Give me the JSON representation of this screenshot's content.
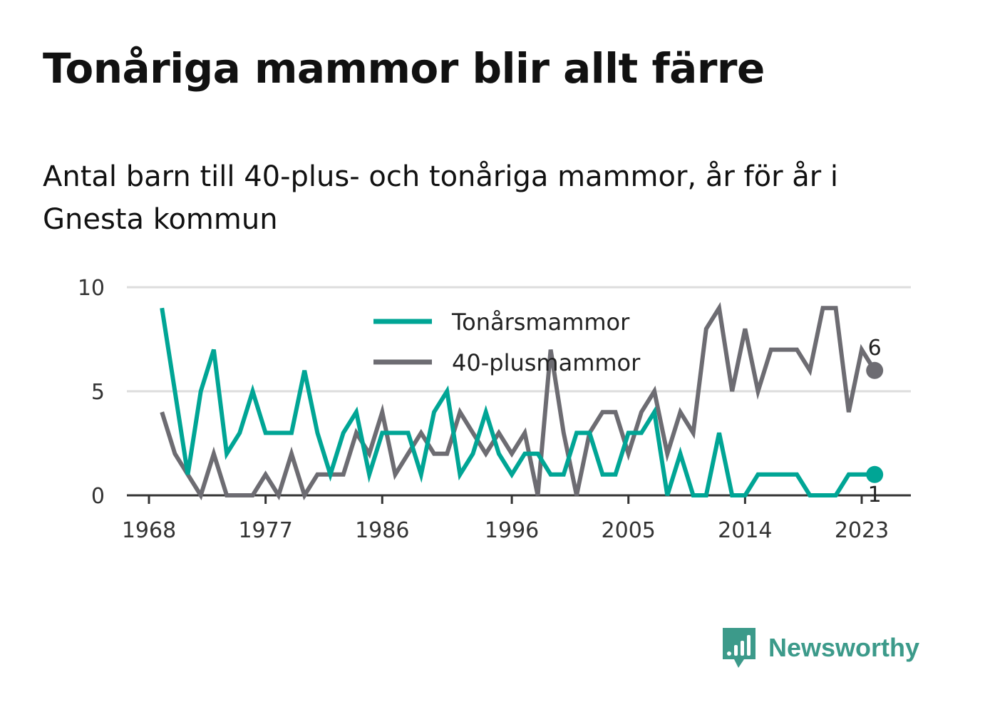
{
  "title": "Tonåriga mammor blir allt färre",
  "subtitle": "Antal barn till 40-plus- och tonåriga mammor, år för år i Gnesta kommun",
  "brand": {
    "name": "Newsworthy",
    "icon": "newsworthy-logo-icon",
    "color": "#3c9a8a"
  },
  "chart_data": {
    "type": "line",
    "x": [
      1969,
      1970,
      1971,
      1972,
      1973,
      1974,
      1975,
      1976,
      1977,
      1978,
      1979,
      1980,
      1981,
      1982,
      1983,
      1984,
      1985,
      1986,
      1987,
      1988,
      1989,
      1990,
      1991,
      1992,
      1993,
      1994,
      1995,
      1996,
      1997,
      1998,
      1999,
      2000,
      2001,
      2002,
      2003,
      2004,
      2005,
      2006,
      2007,
      2008,
      2009,
      2010,
      2011,
      2012,
      2013,
      2014,
      2015,
      2016,
      2017,
      2018,
      2019,
      2020,
      2021,
      2022,
      2023,
      2024
    ],
    "series": [
      {
        "name": "Tonårsmammor",
        "color": "#00a595",
        "values": [
          9,
          5,
          1,
          5,
          7,
          2,
          3,
          5,
          3,
          3,
          3,
          6,
          3,
          1,
          3,
          4,
          1,
          3,
          3,
          3,
          1,
          4,
          5,
          1,
          2,
          4,
          2,
          1,
          2,
          2,
          1,
          1,
          3,
          3,
          1,
          1,
          3,
          3,
          4,
          0,
          2,
          0,
          0,
          3,
          0,
          0,
          1,
          1,
          1,
          1,
          0,
          0,
          0,
          1,
          1,
          1
        ],
        "end_label": "1"
      },
      {
        "name": "40-plusmammor",
        "color": "#6d6c72",
        "values": [
          4,
          2,
          1,
          0,
          2,
          0,
          0,
          0,
          1,
          0,
          2,
          0,
          1,
          1,
          1,
          3,
          2,
          4,
          1,
          2,
          3,
          2,
          2,
          4,
          3,
          2,
          3,
          2,
          3,
          0,
          7,
          3,
          0,
          3,
          4,
          4,
          2,
          4,
          5,
          2,
          4,
          3,
          8,
          9,
          5,
          8,
          5,
          7,
          7,
          7,
          6,
          9,
          9,
          4,
          7,
          6
        ],
        "end_label": "6"
      }
    ],
    "x_ticks": [
      "1968",
      "1977",
      "1986",
      "1996",
      "2005",
      "2014",
      "2023"
    ],
    "y_ticks": [
      "0",
      "5",
      "10"
    ],
    "ylim": [
      0,
      10
    ],
    "grid": true,
    "legend_position": "top-center"
  }
}
